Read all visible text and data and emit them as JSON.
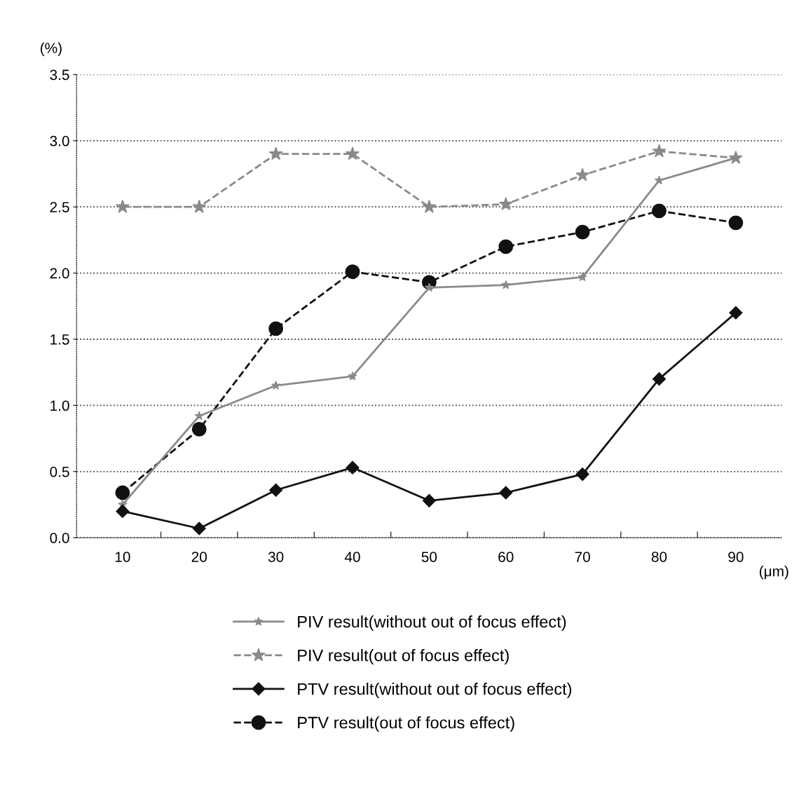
{
  "chart_data": {
    "type": "line",
    "xlabel": "(μm)",
    "ylabel": "(%)",
    "categories": [
      "10",
      "20",
      "30",
      "40",
      "50",
      "60",
      "70",
      "80",
      "90"
    ],
    "ylim": [
      0,
      3.5
    ],
    "yticks": [
      {
        "value": 0,
        "label": "0.0"
      },
      0.5,
      {
        "value": 1,
        "label": "1.0"
      },
      1.5,
      {
        "value": 2,
        "label": "2.0"
      },
      2.5,
      {
        "value": 3,
        "label": "3.0"
      },
      3.5
    ],
    "grid": "y",
    "legend": "bottom",
    "series": [
      {
        "name": "PIV result(without out of focus effect)",
        "color": "#8a8a8a",
        "marker": "star",
        "line_style": "solid",
        "values": [
          0.25,
          0.92,
          1.15,
          1.22,
          1.89,
          1.91,
          1.97,
          2.7,
          2.87
        ]
      },
      {
        "name": "PIV result(out of focus effect)",
        "color": "#8a8a8a",
        "marker": "star",
        "line_style": "dashed",
        "values": [
          2.5,
          2.5,
          2.9,
          2.9,
          2.5,
          2.52,
          2.74,
          2.92,
          2.87
        ]
      },
      {
        "name": "PTV result(without out of focus effect)",
        "color": "#111111",
        "marker": "diamond",
        "line_style": "solid",
        "values": [
          0.2,
          0.07,
          0.36,
          0.53,
          0.28,
          0.34,
          0.48,
          1.2,
          1.7
        ]
      },
      {
        "name": "PTV result(out of focus effect)",
        "color": "#111111",
        "marker": "circle",
        "line_style": "dashed",
        "values": [
          0.34,
          0.82,
          1.58,
          2.01,
          1.93,
          2.2,
          2.31,
          2.47,
          2.38
        ]
      }
    ]
  }
}
